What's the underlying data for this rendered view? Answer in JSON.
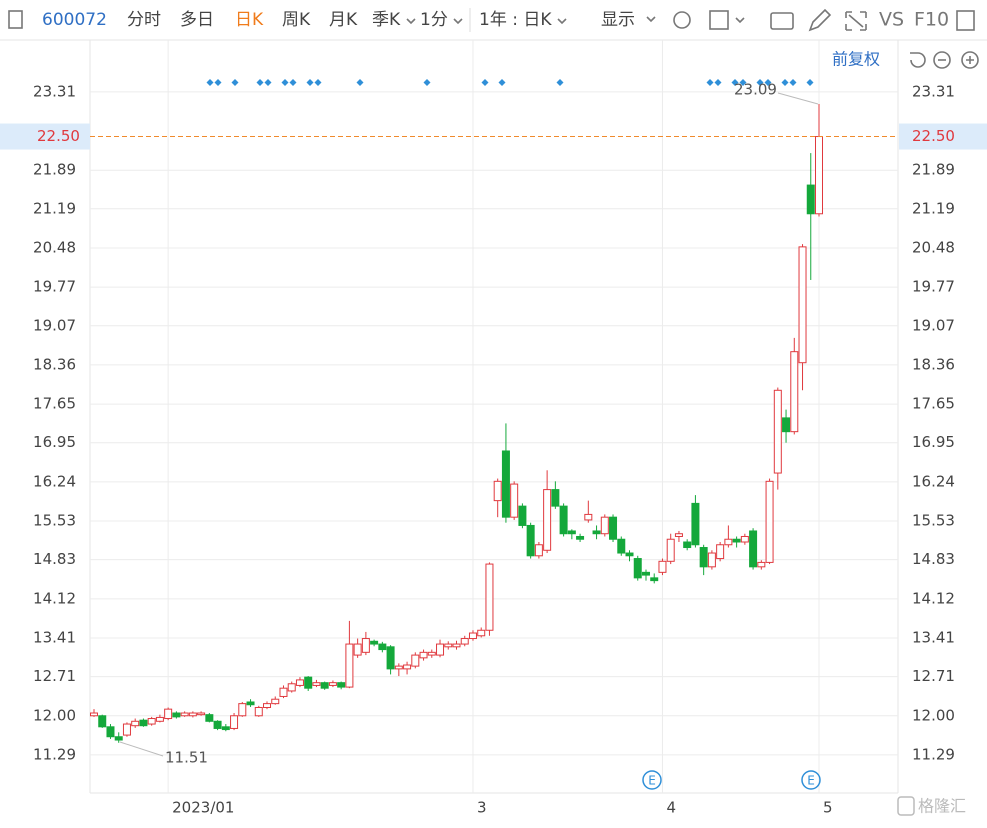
{
  "toolbar": {
    "code": "600072",
    "tabs": [
      "分时",
      "多日",
      "日K",
      "周K",
      "月K",
      "季K",
      "1分",
      "1年 : 日K",
      "显示",
      "VS",
      "F10"
    ],
    "adjust": "前复权"
  },
  "watermark": "格隆汇",
  "chart_data": {
    "type": "candlestick",
    "categories": [
      null,
      null,
      null,
      null,
      null,
      null,
      null,
      null,
      null,
      "2023/01",
      null,
      null,
      null,
      null,
      null,
      null,
      null,
      null,
      null,
      null,
      null,
      null,
      null,
      null,
      null,
      null,
      null,
      null,
      null,
      null,
      null,
      null,
      null,
      null,
      null,
      null,
      null,
      null,
      null,
      null,
      null,
      null,
      null,
      null,
      null,
      null,
      "3",
      null,
      null,
      null,
      null,
      null,
      null,
      null,
      null,
      null,
      null,
      null,
      null,
      null,
      null,
      null,
      null,
      null,
      null,
      null,
      null,
      null,
      null,
      "4",
      null,
      null,
      null,
      null,
      null,
      null,
      null,
      null,
      null,
      null,
      null,
      null,
      null,
      null,
      null,
      null,
      null,
      null,
      "5"
    ],
    "open": [
      12.0,
      12.0,
      11.8,
      11.62,
      11.65,
      11.82,
      11.92,
      11.85,
      11.9,
      11.95,
      12.05,
      12.0,
      12.0,
      12.02,
      12.02,
      11.9,
      11.8,
      11.77,
      12.0,
      12.25,
      12.0,
      12.15,
      12.22,
      12.35,
      12.45,
      12.55,
      12.7,
      12.55,
      12.6,
      12.55,
      12.6,
      12.52,
      13.1,
      13.15,
      13.35,
      13.3,
      13.25,
      12.85,
      12.85,
      12.9,
      13.05,
      13.1,
      13.1,
      13.25,
      13.25,
      13.3,
      13.4,
      13.45,
      13.55,
      15.9,
      16.8,
      15.6,
      15.8,
      15.45,
      14.9,
      15.0,
      16.1,
      15.8,
      15.35,
      15.25,
      15.55,
      15.35,
      15.3,
      15.6,
      15.2,
      14.95,
      14.85,
      14.6,
      14.5,
      14.6,
      14.8,
      15.25,
      15.15,
      15.85,
      15.05,
      14.7,
      14.85,
      15.1,
      15.2,
      15.15,
      15.35,
      14.7,
      14.78,
      16.4,
      17.4,
      17.15,
      18.4,
      21.62,
      21.1
    ],
    "high": [
      12.12,
      12.02,
      11.85,
      11.7,
      11.88,
      11.95,
      11.95,
      11.98,
      12.02,
      12.15,
      12.08,
      12.08,
      12.08,
      12.08,
      12.05,
      11.92,
      11.85,
      12.05,
      12.25,
      12.3,
      12.18,
      12.26,
      12.35,
      12.55,
      12.62,
      12.7,
      12.72,
      12.65,
      12.62,
      12.64,
      12.62,
      13.72,
      13.4,
      13.52,
      13.38,
      13.34,
      13.28,
      12.95,
      12.98,
      13.15,
      13.2,
      13.2,
      13.38,
      13.35,
      13.36,
      13.45,
      13.55,
      13.6,
      14.78,
      16.3,
      17.3,
      16.25,
      15.85,
      15.5,
      15.15,
      16.45,
      16.25,
      15.85,
      15.38,
      15.3,
      15.9,
      15.45,
      15.65,
      15.65,
      15.25,
      15.0,
      14.9,
      14.65,
      14.58,
      14.85,
      15.3,
      15.35,
      15.2,
      16.0,
      15.1,
      15.0,
      15.15,
      15.45,
      15.25,
      15.3,
      15.4,
      14.82,
      16.3,
      17.95,
      17.55,
      18.85,
      20.55,
      22.2,
      23.09
    ],
    "low": [
      11.98,
      11.78,
      11.58,
      11.51,
      11.62,
      11.78,
      11.8,
      11.82,
      11.88,
      11.92,
      11.95,
      11.98,
      11.97,
      12.0,
      11.88,
      11.74,
      11.72,
      11.74,
      11.98,
      12.16,
      11.98,
      12.12,
      12.2,
      12.32,
      12.42,
      12.52,
      12.45,
      12.52,
      12.47,
      12.52,
      12.48,
      12.5,
      13.05,
      13.1,
      13.26,
      13.15,
      12.75,
      12.72,
      12.75,
      12.86,
      13.0,
      13.05,
      13.06,
      13.2,
      13.2,
      13.26,
      13.36,
      13.42,
      13.45,
      15.6,
      15.5,
      15.55,
      15.4,
      14.85,
      14.85,
      14.95,
      15.75,
      15.25,
      15.2,
      15.15,
      15.5,
      15.2,
      15.25,
      15.15,
      14.9,
      14.8,
      14.45,
      14.45,
      14.4,
      14.55,
      14.75,
      15.15,
      15.0,
      15.05,
      14.55,
      14.65,
      14.8,
      15.05,
      15.05,
      15.1,
      14.65,
      14.65,
      14.75,
      16.1,
      16.95,
      17.1,
      17.9,
      19.9,
      21.05
    ],
    "close": [
      12.05,
      11.8,
      11.62,
      11.56,
      11.85,
      11.9,
      11.82,
      11.95,
      11.97,
      12.12,
      11.98,
      12.05,
      12.05,
      12.05,
      11.9,
      11.77,
      11.75,
      12.0,
      12.22,
      12.2,
      12.15,
      12.22,
      12.3,
      12.5,
      12.58,
      12.65,
      12.5,
      12.6,
      12.5,
      12.6,
      12.52,
      13.3,
      13.3,
      13.4,
      13.3,
      13.2,
      12.85,
      12.9,
      12.92,
      13.1,
      13.15,
      13.15,
      13.3,
      13.3,
      13.3,
      13.4,
      13.5,
      13.55,
      14.75,
      16.25,
      15.6,
      16.2,
      15.45,
      14.9,
      15.1,
      16.1,
      15.8,
      15.3,
      15.3,
      15.2,
      15.65,
      15.3,
      15.6,
      15.2,
      14.95,
      14.9,
      14.5,
      14.55,
      14.45,
      14.8,
      15.2,
      15.3,
      15.05,
      15.1,
      14.7,
      14.95,
      15.1,
      15.2,
      15.15,
      15.25,
      14.7,
      14.78,
      16.25,
      17.9,
      17.15,
      18.6,
      20.5,
      21.1,
      22.5
    ],
    "up_color": "#e0393e",
    "down_color": "#14a83b",
    "ylim": [
      10.6,
      24.25
    ],
    "yticks": [
      23.31,
      21.89,
      21.19,
      20.48,
      19.77,
      19.07,
      18.36,
      17.65,
      16.95,
      16.24,
      15.53,
      14.83,
      14.12,
      13.41,
      12.71,
      {
        "value": 12,
        "label": "12.00"
      },
      11.29
    ],
    "last_price": {
      "value": 22.5,
      "label": "22.50"
    },
    "annotations": [
      "23.09",
      "11.51"
    ],
    "grid": true
  }
}
